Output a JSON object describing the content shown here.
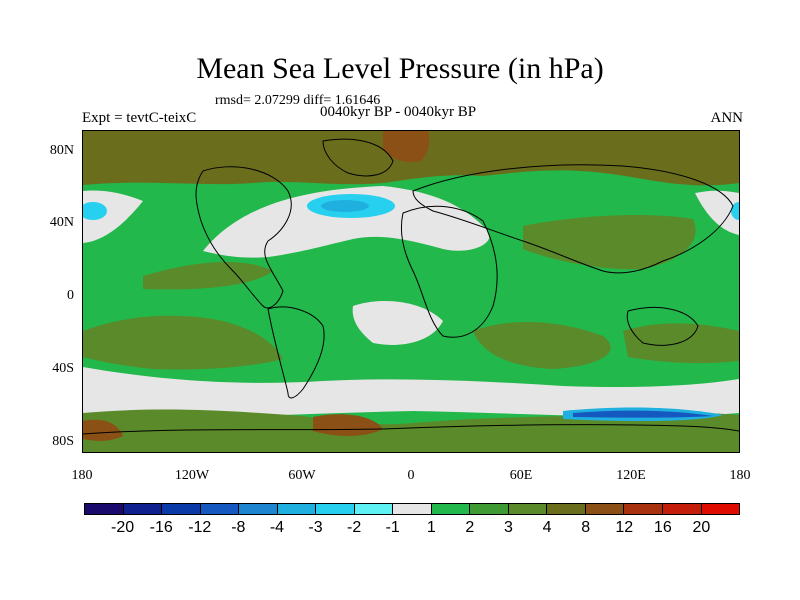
{
  "title": "Mean Sea Level Pressure (in hPa)",
  "stats": "rmsd= 2.07299 diff= 1.61646",
  "expt": "Expt = tevtC-teixC",
  "period": "0040kyr BP - 0040kyr BP",
  "season": "ANN",
  "map": {
    "y_ticks": [
      "80N",
      "40N",
      "0",
      "40S",
      "80S"
    ],
    "x_ticks": [
      "180",
      "120W",
      "60W",
      "0",
      "60E",
      "120E",
      "180"
    ]
  },
  "colorbar": {
    "levels": [
      "-20",
      "-16",
      "-12",
      "-8",
      "-4",
      "-3",
      "-2",
      "-1",
      "1",
      "2",
      "3",
      "4",
      "8",
      "12",
      "16",
      "20"
    ],
    "colors": [
      "#1a0a6e",
      "#10208f",
      "#0a3aa8",
      "#1558c0",
      "#1e86d0",
      "#1fb0e0",
      "#27d0ef",
      "#5ff2f5",
      "#e6e6e6",
      "#22b84b",
      "#3f9a34",
      "#5b8a2a",
      "#6a6e1c",
      "#8a5016",
      "#a8320e",
      "#c41e0a",
      "#df0a00"
    ]
  }
}
